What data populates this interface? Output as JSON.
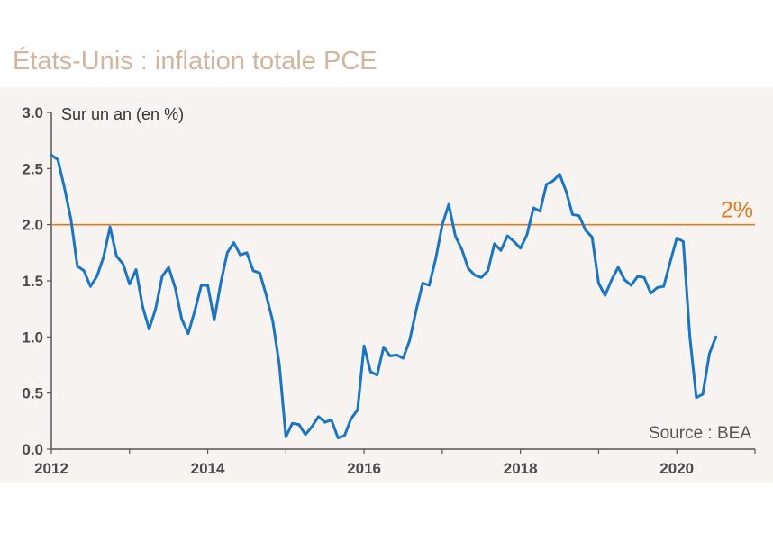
{
  "title": "États-Unis : inflation totale PCE",
  "ylabel": "Sur un an (en %)",
  "source": "Source : BEA",
  "reference_line": {
    "value": 2.0,
    "label": "2%",
    "color": "#e07b1f"
  },
  "colors": {
    "series": "#1a75c2",
    "title": "#d2b59c",
    "plot_background": "#f7f3f0",
    "axis": "#555555"
  },
  "chart_data": {
    "type": "line",
    "title": "États-Unis : inflation totale PCE",
    "ylabel": "Sur un an (en %)",
    "xlabel": "",
    "xlim": [
      2012.0,
      2021.0
    ],
    "ylim": [
      0.0,
      3.0
    ],
    "yticks": [
      0.0,
      0.5,
      1.0,
      1.5,
      2.0,
      2.5,
      3.0
    ],
    "ytick_labels": [
      "0.0",
      "0.5",
      "1.0",
      "1.5",
      "2.0",
      "2.5",
      "3.0"
    ],
    "xticks": [
      2012,
      2014,
      2016,
      2018,
      2020
    ],
    "xtick_labels": [
      "2012",
      "2014",
      "2016",
      "2018",
      "2020"
    ],
    "grid": false,
    "series": [
      {
        "color": "#1a75c2",
        "x": [
          2012.0,
          2012.083,
          2012.167,
          2012.25,
          2012.333,
          2012.417,
          2012.5,
          2012.583,
          2012.667,
          2012.75,
          2012.833,
          2012.917,
          2013.0,
          2013.083,
          2013.167,
          2013.25,
          2013.333,
          2013.417,
          2013.5,
          2013.583,
          2013.667,
          2013.75,
          2013.833,
          2013.917,
          2014.0,
          2014.083,
          2014.167,
          2014.25,
          2014.333,
          2014.417,
          2014.5,
          2014.583,
          2014.667,
          2014.75,
          2014.833,
          2014.917,
          2015.0,
          2015.083,
          2015.167,
          2015.25,
          2015.333,
          2015.417,
          2015.5,
          2015.583,
          2015.667,
          2015.75,
          2015.833,
          2015.917,
          2016.0,
          2016.083,
          2016.167,
          2016.25,
          2016.333,
          2016.417,
          2016.5,
          2016.583,
          2016.667,
          2016.75,
          2016.833,
          2016.917,
          2017.0,
          2017.083,
          2017.167,
          2017.25,
          2017.333,
          2017.417,
          2017.5,
          2017.583,
          2017.667,
          2017.75,
          2017.833,
          2017.917,
          2018.0,
          2018.083,
          2018.167,
          2018.25,
          2018.333,
          2018.417,
          2018.5,
          2018.583,
          2018.667,
          2018.75,
          2018.833,
          2018.917,
          2019.0,
          2019.083,
          2019.167,
          2019.25,
          2019.333,
          2019.417,
          2019.5,
          2019.583,
          2019.667,
          2019.75,
          2019.833,
          2019.917,
          2020.0,
          2020.083,
          2020.167,
          2020.25,
          2020.333,
          2020.417,
          2020.5
        ],
        "y": [
          2.62,
          2.58,
          2.33,
          2.05,
          1.63,
          1.59,
          1.45,
          1.54,
          1.71,
          1.98,
          1.72,
          1.65,
          1.47,
          1.6,
          1.27,
          1.07,
          1.25,
          1.54,
          1.62,
          1.44,
          1.16,
          1.03,
          1.23,
          1.46,
          1.46,
          1.15,
          1.48,
          1.75,
          1.84,
          1.73,
          1.75,
          1.59,
          1.57,
          1.37,
          1.14,
          0.75,
          0.11,
          0.23,
          0.22,
          0.13,
          0.2,
          0.29,
          0.24,
          0.26,
          0.1,
          0.12,
          0.27,
          0.35,
          0.92,
          0.69,
          0.66,
          0.91,
          0.83,
          0.84,
          0.81,
          0.97,
          1.24,
          1.48,
          1.46,
          1.7,
          2.0,
          2.18,
          1.9,
          1.78,
          1.61,
          1.55,
          1.53,
          1.59,
          1.83,
          1.77,
          1.9,
          1.85,
          1.79,
          1.91,
          2.15,
          2.12,
          2.36,
          2.39,
          2.45,
          2.3,
          2.09,
          2.08,
          1.95,
          1.89,
          1.48,
          1.37,
          1.51,
          1.62,
          1.51,
          1.46,
          1.54,
          1.53,
          1.39,
          1.44,
          1.45,
          1.67,
          1.88,
          1.85,
          1.0,
          0.46,
          0.49,
          0.85,
          1.0
        ]
      }
    ]
  }
}
